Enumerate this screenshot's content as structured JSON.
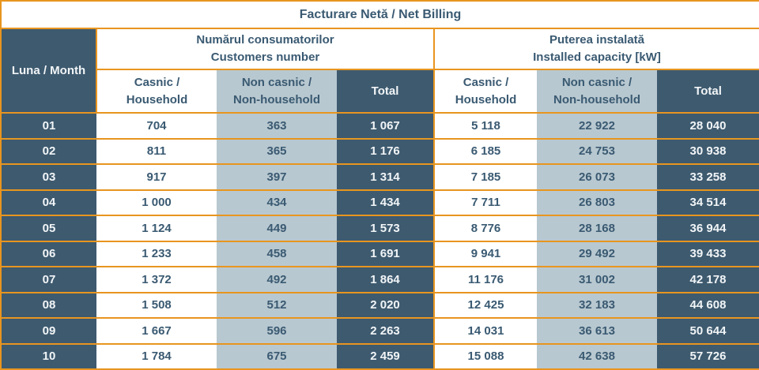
{
  "title": "Facturare Netă / Net Billing",
  "table": {
    "month_header": "Luna / Month",
    "groups": [
      {
        "line1": "Numărul consumatorilor",
        "line2": "Customers number"
      },
      {
        "line1": "Puterea instalată",
        "line2": "Installed capacity [kW]"
      }
    ],
    "sub_headers": [
      {
        "line1": "Casnic /",
        "line2": "Household"
      },
      {
        "line1": "Non casnic /",
        "line2": "Non-household"
      },
      {
        "line1": "Total",
        "line2": ""
      },
      {
        "line1": "Casnic /",
        "line2": "Household"
      },
      {
        "line1": "Non casnic /",
        "line2": "Non-household"
      },
      {
        "line1": "Total",
        "line2": ""
      }
    ],
    "rows": [
      [
        "01",
        "704",
        "363",
        "1 067",
        "5 118",
        "22 922",
        "28 040"
      ],
      [
        "02",
        "811",
        "365",
        "1 176",
        "6 185",
        "24 753",
        "30 938"
      ],
      [
        "03",
        "917",
        "397",
        "1 314",
        "7 185",
        "26 073",
        "33 258"
      ],
      [
        "04",
        "1 000",
        "434",
        "1 434",
        "7 711",
        "26 803",
        "34 514"
      ],
      [
        "05",
        "1 124",
        "449",
        "1 573",
        "8 776",
        "28 168",
        "36 944"
      ],
      [
        "06",
        "1 233",
        "458",
        "1 691",
        "9 941",
        "29 492",
        "39 433"
      ],
      [
        "07",
        "1 372",
        "492",
        "1 864",
        "11 176",
        "31 002",
        "42 178"
      ],
      [
        "08",
        "1 508",
        "512",
        "2 020",
        "12 425",
        "32 183",
        "44 608"
      ],
      [
        "09",
        "1 667",
        "596",
        "2 263",
        "14 031",
        "36 613",
        "50 644"
      ],
      [
        "10",
        "1 784",
        "675",
        "2 459",
        "15 088",
        "42 638",
        "57 726"
      ]
    ]
  },
  "colors": {
    "accent_orange": "#E8951F",
    "dark_cell": "#3E5A6F",
    "light_cell": "#B8C8D0",
    "header_text": "#3A5A72",
    "dark_cell_text": "#F1F5F7",
    "white_cell": "#FFFFFF"
  },
  "chart_data": {
    "type": "table",
    "title": "Facturare Netă / Net Billing",
    "columns": [
      "Luna / Month",
      "Customers number - Casnic / Household",
      "Customers number - Non casnic / Non-household",
      "Customers number - Total",
      "Installed capacity [kW] - Casnic / Household",
      "Installed capacity [kW] - Non casnic / Non-household",
      "Installed capacity [kW] - Total"
    ],
    "rows": [
      [
        "01",
        704,
        363,
        1067,
        5118,
        22922,
        28040
      ],
      [
        "02",
        811,
        365,
        1176,
        6185,
        24753,
        30938
      ],
      [
        "03",
        917,
        397,
        1314,
        7185,
        26073,
        33258
      ],
      [
        "04",
        1000,
        434,
        1434,
        7711,
        26803,
        34514
      ],
      [
        "05",
        1124,
        449,
        1573,
        8776,
        28168,
        36944
      ],
      [
        "06",
        1233,
        458,
        1691,
        9941,
        29492,
        39433
      ],
      [
        "07",
        1372,
        492,
        1864,
        11176,
        31002,
        42178
      ],
      [
        "08",
        1508,
        512,
        2020,
        12425,
        32183,
        44608
      ],
      [
        "09",
        1667,
        596,
        2263,
        14031,
        36613,
        50644
      ],
      [
        "10",
        1784,
        675,
        2459,
        15088,
        42638,
        57726
      ]
    ]
  }
}
